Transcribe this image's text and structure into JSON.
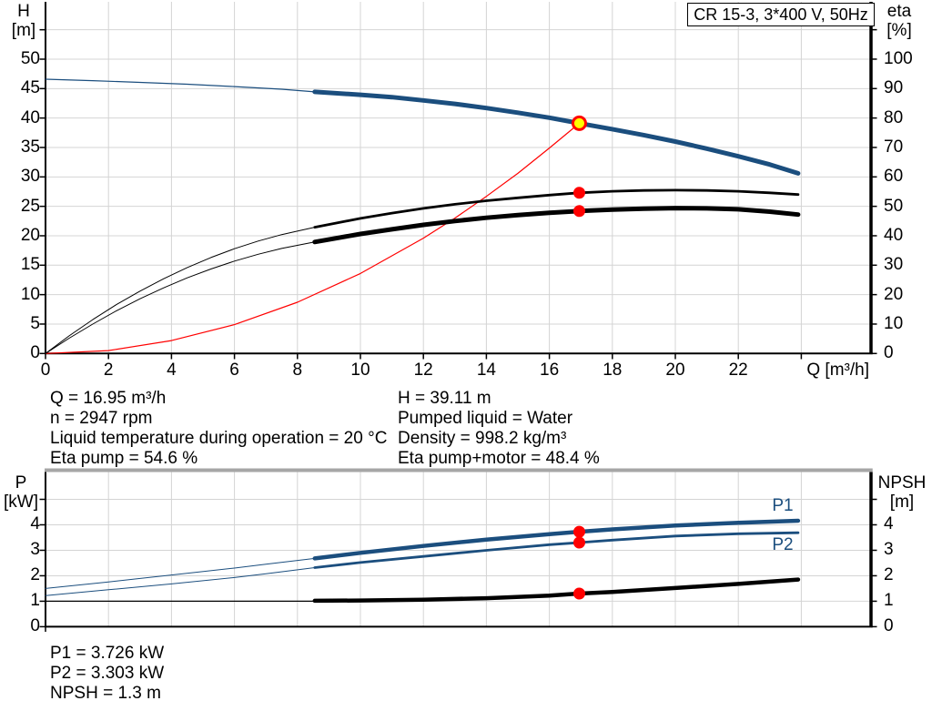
{
  "title_box": {
    "text": "CR 15-3, 3*400 V, 50Hz"
  },
  "colors": {
    "curve_blue": "#1b4e7e",
    "curve_black": "#000000",
    "curve_red": "#ff0000",
    "marker_red": "#ff0000",
    "marker_yellow": "#ffff00",
    "grid": "#d4d4d4",
    "axis": "#000000",
    "frame_gray": "#a6a6a6"
  },
  "chart_data": [
    {
      "id": "hq-eta-chart",
      "type": "line",
      "title": "CR 15-3, 3*400 V, 50Hz",
      "xlabel": "Q [m³/h]",
      "ylabel_left": [
        "H",
        "[m]"
      ],
      "ylabel_right": [
        "eta",
        "[%]"
      ],
      "xlim": [
        0,
        26.2
      ],
      "ylim_left": [
        0,
        58
      ],
      "ylim_right": [
        0,
        116
      ],
      "x_ticks": [
        0,
        2,
        4,
        6,
        8,
        10,
        12,
        14,
        16,
        18,
        20,
        22
      ],
      "y_left_ticks": [
        0,
        5,
        10,
        15,
        20,
        25,
        30,
        35,
        40,
        45,
        50
      ],
      "y_left_tick_max": 55,
      "y_right_ticks": [
        0,
        10,
        20,
        30,
        40,
        50,
        60,
        70,
        80,
        90,
        100
      ],
      "y_right_tick_max": 110,
      "grid": true,
      "series": [
        {
          "name": "system-curve",
          "axis": "left",
          "color": "#ff0000",
          "width": 1.2,
          "points": [
            [
              0,
              0
            ],
            [
              2,
              0.5
            ],
            [
              4,
              2.2
            ],
            [
              6,
              4.9
            ],
            [
              8,
              8.7
            ],
            [
              10,
              13.6
            ],
            [
              12,
              19.6
            ],
            [
              13,
              23.0
            ],
            [
              14,
              26.7
            ],
            [
              15,
              30.6
            ],
            [
              16,
              34.9
            ],
            [
              16.95,
              39.11
            ]
          ]
        },
        {
          "name": "head-curve-extension",
          "axis": "left",
          "color": "#1b4e7e",
          "width": 1.2,
          "points": [
            [
              0,
              46.6
            ],
            [
              1.5,
              46.35
            ],
            [
              3,
              46.05
            ],
            [
              4.5,
              45.75
            ],
            [
              6,
              45.35
            ],
            [
              7.5,
              44.9
            ],
            [
              8.55,
              44.45
            ]
          ]
        },
        {
          "name": "eta-pump-extension",
          "axis": "right",
          "color": "#000000",
          "width": 1,
          "points": [
            [
              0,
              0
            ],
            [
              0.75,
              6
            ],
            [
              1.5,
              11.5
            ],
            [
              2.25,
              16.6
            ],
            [
              3,
              21.2
            ],
            [
              3.75,
              25.4
            ],
            [
              4.5,
              29.2
            ],
            [
              5.25,
              32.6
            ],
            [
              6,
              35.6
            ],
            [
              6.75,
              38.2
            ],
            [
              7.5,
              40.4
            ],
            [
              8.55,
              42.9
            ]
          ]
        },
        {
          "name": "eta-pump-motor-extension",
          "axis": "right",
          "color": "#000000",
          "width": 1,
          "points": [
            [
              0,
              0
            ],
            [
              0.75,
              5.2
            ],
            [
              1.5,
              10.0
            ],
            [
              2.25,
              14.5
            ],
            [
              3,
              18.6
            ],
            [
              3.75,
              22.3
            ],
            [
              4.5,
              25.7
            ],
            [
              5.25,
              28.7
            ],
            [
              6,
              31.4
            ],
            [
              6.75,
              33.7
            ],
            [
              7.5,
              35.7
            ],
            [
              8.55,
              37.9
            ]
          ]
        },
        {
          "name": "eta-pump-curve",
          "axis": "right",
          "color": "#000000",
          "width": 2.8,
          "points": [
            [
              8.55,
              42.9
            ],
            [
              10,
              45.9
            ],
            [
              11,
              47.7
            ],
            [
              12,
              49.3
            ],
            [
              13,
              50.7
            ],
            [
              14,
              51.9
            ],
            [
              15,
              52.9
            ],
            [
              16,
              53.8
            ],
            [
              16.95,
              54.6
            ],
            [
              18,
              55.1
            ],
            [
              19,
              55.4
            ],
            [
              20,
              55.5
            ],
            [
              21,
              55.4
            ],
            [
              22,
              55.1
            ],
            [
              23,
              54.6
            ],
            [
              23.9,
              54.0
            ]
          ]
        },
        {
          "name": "eta-pump-motor-curve",
          "axis": "right",
          "color": "#000000",
          "width": 5,
          "points": [
            [
              8.55,
              37.9
            ],
            [
              10,
              40.6
            ],
            [
              11,
              42.2
            ],
            [
              12,
              43.7
            ],
            [
              13,
              45.0
            ],
            [
              14,
              46.1
            ],
            [
              15,
              47.0
            ],
            [
              16,
              47.8
            ],
            [
              16.95,
              48.4
            ],
            [
              18,
              48.9
            ],
            [
              19,
              49.2
            ],
            [
              20,
              49.4
            ],
            [
              21,
              49.3
            ],
            [
              22,
              49.0
            ],
            [
              23,
              48.2
            ],
            [
              23.9,
              47.2
            ]
          ]
        },
        {
          "name": "head-curve",
          "axis": "left",
          "color": "#1b4e7e",
          "width": 5,
          "points": [
            [
              8.55,
              44.45
            ],
            [
              10,
              43.95
            ],
            [
              11,
              43.55
            ],
            [
              12,
              43.0
            ],
            [
              13,
              42.4
            ],
            [
              14,
              41.7
            ],
            [
              15,
              40.9
            ],
            [
              16,
              40.05
            ],
            [
              16.95,
              39.11
            ],
            [
              18,
              38.1
            ],
            [
              19,
              37.1
            ],
            [
              20,
              36.0
            ],
            [
              21,
              34.8
            ],
            [
              22,
              33.5
            ],
            [
              23,
              32.1
            ],
            [
              23.9,
              30.6
            ]
          ]
        }
      ],
      "markers": [
        {
          "name": "duty-point",
          "axis": "left",
          "x": 16.95,
          "y": 39.11,
          "fill": "#ffff00",
          "stroke": "#ff0000",
          "stroke_width": 3,
          "r": 7
        },
        {
          "name": "eta-pump-point",
          "axis": "right",
          "x": 16.95,
          "y": 54.6,
          "fill": "#ff0000",
          "r": 6.5
        },
        {
          "name": "eta-pump-motor-point",
          "axis": "right",
          "x": 16.95,
          "y": 48.4,
          "fill": "#ff0000",
          "r": 6.5
        }
      ]
    },
    {
      "id": "power-npsh-chart",
      "type": "line",
      "xlabel": "",
      "ylabel_left": [
        "P",
        "[kW]"
      ],
      "ylabel_right": [
        "NPSH",
        "[m]"
      ],
      "xlim": [
        0,
        26.2
      ],
      "ylim_left": [
        0,
        5
      ],
      "ylim_right": [
        0,
        5
      ],
      "x_ticks": [],
      "y_left_ticks": [
        0,
        1,
        2,
        3,
        4
      ],
      "y_left_tick_max": 5,
      "y_right_ticks": [
        0,
        1,
        2,
        3,
        4
      ],
      "y_right_tick_max": 5,
      "grid": true,
      "curve_labels": [
        {
          "text": "P1",
          "color": "#1b4e7e"
        },
        {
          "text": "P2",
          "color": "#1b4e7e"
        }
      ],
      "series": [
        {
          "name": "npsh-curve-extension",
          "axis": "right",
          "color": "#000000",
          "width": 1.2,
          "points": [
            [
              0,
              1.0
            ],
            [
              8.55,
              1.0
            ]
          ]
        },
        {
          "name": "p1-curve-extension",
          "axis": "left",
          "color": "#1b4e7e",
          "width": 1,
          "points": [
            [
              0,
              1.5
            ],
            [
              2,
              1.76
            ],
            [
              4,
              2.03
            ],
            [
              6,
              2.3
            ],
            [
              7,
              2.45
            ],
            [
              8.55,
              2.68
            ]
          ]
        },
        {
          "name": "p2-curve-extension",
          "axis": "left",
          "color": "#1b4e7e",
          "width": 1,
          "points": [
            [
              0,
              1.22
            ],
            [
              2,
              1.45
            ],
            [
              4,
              1.68
            ],
            [
              6,
              1.93
            ],
            [
              7,
              2.08
            ],
            [
              8.55,
              2.32
            ]
          ]
        },
        {
          "name": "npsh-curve",
          "axis": "right",
          "color": "#000000",
          "width": 4.5,
          "points": [
            [
              8.55,
              1.02
            ],
            [
              10,
              1.03
            ],
            [
              12,
              1.06
            ],
            [
              14,
              1.12
            ],
            [
              16,
              1.22
            ],
            [
              16.95,
              1.3
            ],
            [
              18,
              1.36
            ],
            [
              20,
              1.52
            ],
            [
              22,
              1.68
            ],
            [
              23.9,
              1.85
            ]
          ]
        },
        {
          "name": "p2-curve",
          "axis": "left",
          "color": "#1b4e7e",
          "width": 2.8,
          "points": [
            [
              8.55,
              2.32
            ],
            [
              10,
              2.52
            ],
            [
              12,
              2.76
            ],
            [
              14,
              3.0
            ],
            [
              16,
              3.22
            ],
            [
              16.95,
              3.303
            ],
            [
              18,
              3.4
            ],
            [
              20,
              3.56
            ],
            [
              22,
              3.65
            ],
            [
              23.9,
              3.69
            ]
          ]
        },
        {
          "name": "p1-curve",
          "axis": "left",
          "color": "#1b4e7e",
          "width": 4.5,
          "points": [
            [
              8.55,
              2.68
            ],
            [
              10,
              2.9
            ],
            [
              12,
              3.17
            ],
            [
              14,
              3.42
            ],
            [
              16,
              3.63
            ],
            [
              16.95,
              3.726
            ],
            [
              18,
              3.82
            ],
            [
              20,
              3.97
            ],
            [
              22,
              4.08
            ],
            [
              23.9,
              4.16
            ]
          ]
        }
      ],
      "markers": [
        {
          "name": "p1-point",
          "axis": "left",
          "x": 16.95,
          "y": 3.726,
          "fill": "#ff0000",
          "r": 6.5
        },
        {
          "name": "p2-point",
          "axis": "left",
          "x": 16.95,
          "y": 3.303,
          "fill": "#ff0000",
          "r": 6.5
        },
        {
          "name": "npsh-point",
          "axis": "right",
          "x": 16.95,
          "y": 1.3,
          "fill": "#ff0000",
          "r": 6.5
        }
      ]
    }
  ],
  "operating_point_text": {
    "left": [
      "Q = 16.95 m³/h",
      "n = 2947 rpm",
      "Liquid temperature during operation = 20 °C",
      "Eta pump = 54.6 %"
    ],
    "right": [
      "H = 39.11 m",
      "Pumped liquid = Water",
      "Density = 998.2 kg/m³",
      "Eta pump+motor = 48.4 %"
    ],
    "bottom": [
      "P1 = 3.726 kW",
      "P2 = 3.303 kW",
      "NPSH = 1.3 m"
    ]
  }
}
